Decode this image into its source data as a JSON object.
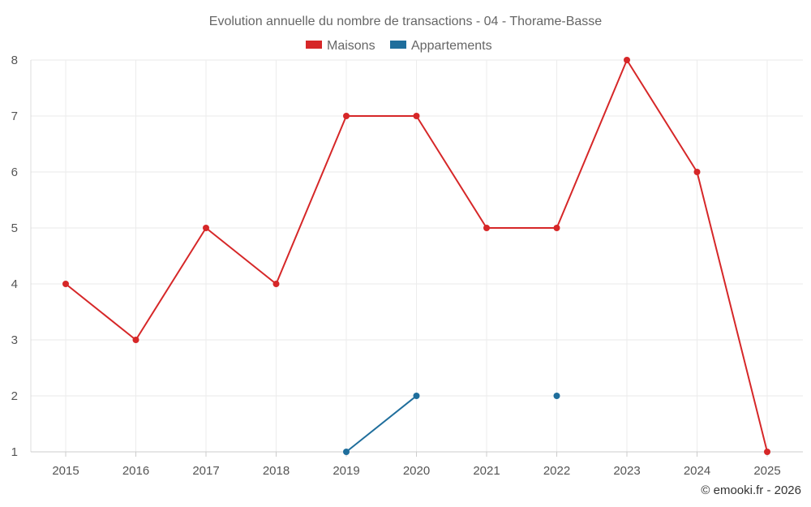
{
  "chart_data": {
    "type": "line",
    "title": "Evolution annuelle du nombre de transactions - 04 - Thorame-Basse",
    "xlabel": "",
    "ylabel": "",
    "categories": [
      "2015",
      "2016",
      "2017",
      "2018",
      "2019",
      "2020",
      "2021",
      "2022",
      "2023",
      "2024",
      "2025"
    ],
    "ylim": [
      1,
      8
    ],
    "yticks": [
      "1",
      "2",
      "3",
      "4",
      "5",
      "6",
      "7",
      "8"
    ],
    "grid": true,
    "legend_position": "top-center",
    "series": [
      {
        "name": "Maisons",
        "color": "#d62728",
        "values": [
          4,
          3,
          5,
          4,
          7,
          7,
          5,
          5,
          8,
          6,
          1
        ]
      },
      {
        "name": "Appartements",
        "color": "#1f6e9c",
        "values": [
          null,
          null,
          null,
          null,
          1,
          2,
          null,
          2,
          null,
          null,
          null
        ]
      }
    ],
    "credit": "© emooki.fr - 2026"
  }
}
